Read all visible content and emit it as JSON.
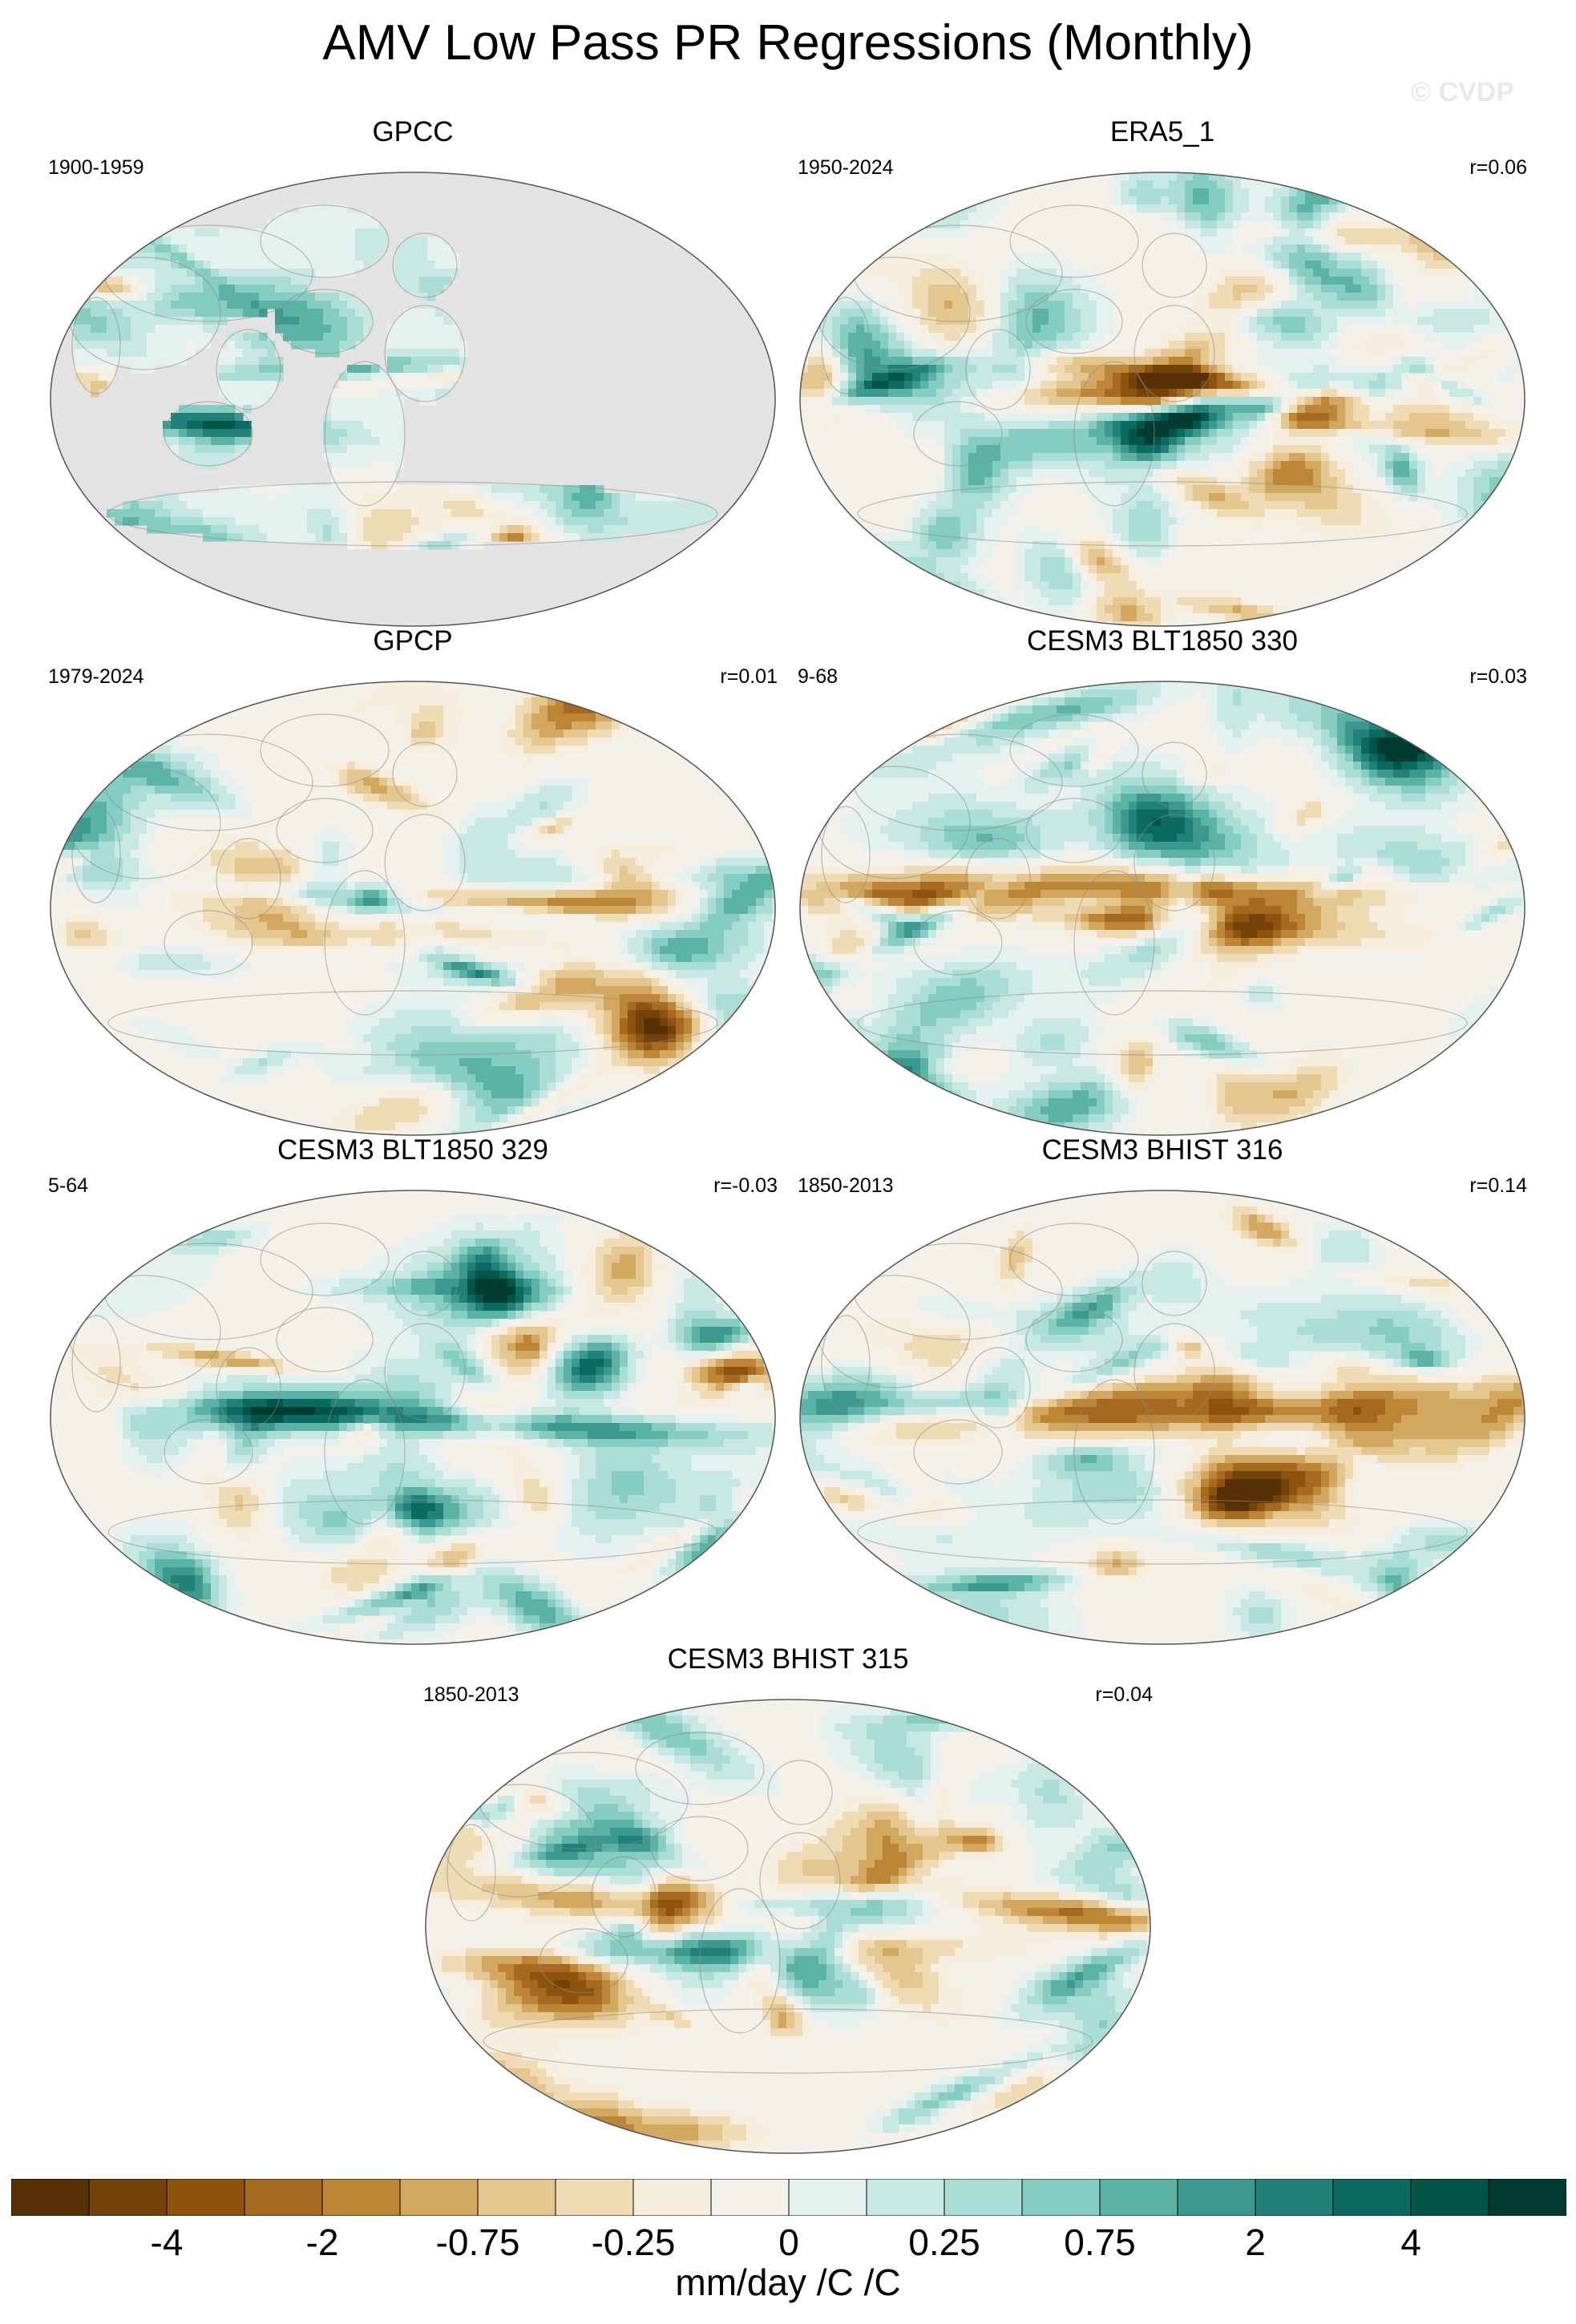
{
  "title": "AMV Low Pass PR Regressions (Monthly)",
  "watermark": "© CVDP",
  "colors": {
    "land_missing": "#e3e3e3",
    "coast": "#8a8a8a",
    "palette": [
      "#573103",
      "#744309",
      "#8e540f",
      "#a66920",
      "#bd8536",
      "#d2a760",
      "#e4c78f",
      "#efdcb5",
      "#f6efdf",
      "#f4f1ea",
      "#e5f1ef",
      "#c8e9e3",
      "#a9ddd5",
      "#84cdc0",
      "#5bb3a6",
      "#3b9990",
      "#218178",
      "#0b6b61",
      "#035449",
      "#013c31"
    ]
  },
  "panels": [
    {
      "id": "gpcc",
      "title": "GPCC",
      "period": "1900-1959",
      "corr": "",
      "land_only": true,
      "seed": 11
    },
    {
      "id": "era5",
      "title": "ERA5_1",
      "period": "1950-2024",
      "corr": "r=0.06",
      "land_only": false,
      "seed": 23
    },
    {
      "id": "gpcp",
      "title": "GPCP",
      "period": "1979-2024",
      "corr": "r=0.01",
      "land_only": false,
      "seed": 37
    },
    {
      "id": "blt330",
      "title": "CESM3 BLT1850 330",
      "period": "9-68",
      "corr": "r=0.03",
      "land_only": false,
      "seed": 41
    },
    {
      "id": "blt329",
      "title": "CESM3 BLT1850 329",
      "period": "5-64",
      "corr": "r=-0.03",
      "land_only": false,
      "seed": 53
    },
    {
      "id": "bhist316",
      "title": "CESM3 BHIST 316",
      "period": "1850-2013",
      "corr": "r=0.14",
      "land_only": false,
      "seed": 67
    },
    {
      "id": "bhist315",
      "title": "CESM3 BHIST 315",
      "period": "1850-2013",
      "corr": "r=0.04",
      "land_only": false,
      "seed": 79
    }
  ],
  "colorbar": {
    "tick_labels": [
      "-4",
      "-2",
      "-0.75",
      "-0.25",
      "0",
      "0.25",
      "0.75",
      "2",
      "4"
    ],
    "units": "mm/day /C /C"
  }
}
